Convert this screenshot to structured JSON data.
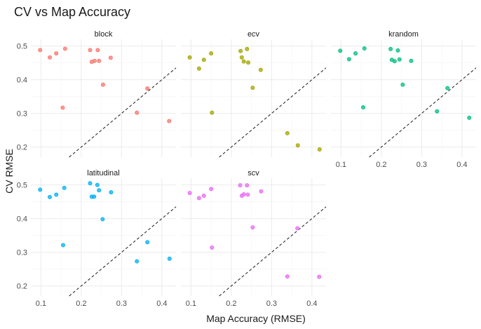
{
  "chart_data": {
    "type": "scatter",
    "title": "CV vs Map Accuracy",
    "xlabel": "Map Accuracy (RMSE)",
    "ylabel": "CV RMSE",
    "xlim": [
      0.075,
      0.435
    ],
    "ylim": [
      0.17,
      0.52
    ],
    "x_ticks": [
      0.1,
      0.2,
      0.3,
      0.4
    ],
    "x_tick_labels": [
      "0.1",
      "0.2",
      "0.3",
      "0.4"
    ],
    "y_ticks": [
      0.2,
      0.3,
      0.4,
      0.5
    ],
    "y_tick_labels": [
      "0.2",
      "0.3",
      "0.4",
      "0.5"
    ],
    "grid": true,
    "reference_line": "y = x",
    "panels": [
      {
        "name": "block",
        "color": "#F8766D",
        "points": [
          {
            "x": 0.098,
            "y": 0.488
          },
          {
            "x": 0.122,
            "y": 0.466
          },
          {
            "x": 0.138,
            "y": 0.478
          },
          {
            "x": 0.16,
            "y": 0.492
          },
          {
            "x": 0.154,
            "y": 0.317
          },
          {
            "x": 0.222,
            "y": 0.488
          },
          {
            "x": 0.226,
            "y": 0.453
          },
          {
            "x": 0.233,
            "y": 0.456
          },
          {
            "x": 0.241,
            "y": 0.488
          },
          {
            "x": 0.244,
            "y": 0.456
          },
          {
            "x": 0.254,
            "y": 0.385
          },
          {
            "x": 0.273,
            "y": 0.465
          },
          {
            "x": 0.338,
            "y": 0.302
          },
          {
            "x": 0.364,
            "y": 0.374
          },
          {
            "x": 0.418,
            "y": 0.277
          }
        ]
      },
      {
        "name": "ecv",
        "color": "#A3A500",
        "points": [
          {
            "x": 0.097,
            "y": 0.466
          },
          {
            "x": 0.12,
            "y": 0.433
          },
          {
            "x": 0.132,
            "y": 0.459
          },
          {
            "x": 0.15,
            "y": 0.478
          },
          {
            "x": 0.152,
            "y": 0.302
          },
          {
            "x": 0.223,
            "y": 0.485
          },
          {
            "x": 0.226,
            "y": 0.466
          },
          {
            "x": 0.231,
            "y": 0.454
          },
          {
            "x": 0.239,
            "y": 0.491
          },
          {
            "x": 0.242,
            "y": 0.451
          },
          {
            "x": 0.253,
            "y": 0.376
          },
          {
            "x": 0.273,
            "y": 0.429
          },
          {
            "x": 0.339,
            "y": 0.241
          },
          {
            "x": 0.365,
            "y": 0.205
          },
          {
            "x": 0.419,
            "y": 0.193
          }
        ]
      },
      {
        "name": "krandom",
        "color": "#00BF7D",
        "points": [
          {
            "x": 0.098,
            "y": 0.486
          },
          {
            "x": 0.12,
            "y": 0.461
          },
          {
            "x": 0.136,
            "y": 0.478
          },
          {
            "x": 0.158,
            "y": 0.493
          },
          {
            "x": 0.155,
            "y": 0.318
          },
          {
            "x": 0.223,
            "y": 0.491
          },
          {
            "x": 0.226,
            "y": 0.459
          },
          {
            "x": 0.233,
            "y": 0.455
          },
          {
            "x": 0.241,
            "y": 0.487
          },
          {
            "x": 0.245,
            "y": 0.46
          },
          {
            "x": 0.253,
            "y": 0.385
          },
          {
            "x": 0.274,
            "y": 0.456
          },
          {
            "x": 0.338,
            "y": 0.306
          },
          {
            "x": 0.364,
            "y": 0.375
          },
          {
            "x": 0.418,
            "y": 0.287
          }
        ]
      },
      {
        "name": "latitudinal",
        "color": "#00B0F6",
        "points": [
          {
            "x": 0.098,
            "y": 0.486
          },
          {
            "x": 0.122,
            "y": 0.464
          },
          {
            "x": 0.138,
            "y": 0.471
          },
          {
            "x": 0.158,
            "y": 0.491
          },
          {
            "x": 0.155,
            "y": 0.321
          },
          {
            "x": 0.222,
            "y": 0.505
          },
          {
            "x": 0.226,
            "y": 0.465
          },
          {
            "x": 0.232,
            "y": 0.465
          },
          {
            "x": 0.24,
            "y": 0.5
          },
          {
            "x": 0.244,
            "y": 0.484
          },
          {
            "x": 0.253,
            "y": 0.398
          },
          {
            "x": 0.274,
            "y": 0.478
          },
          {
            "x": 0.338,
            "y": 0.273
          },
          {
            "x": 0.364,
            "y": 0.33
          },
          {
            "x": 0.419,
            "y": 0.281
          }
        ]
      },
      {
        "name": "scv",
        "color": "#E76BF3",
        "points": [
          {
            "x": 0.097,
            "y": 0.476
          },
          {
            "x": 0.12,
            "y": 0.461
          },
          {
            "x": 0.132,
            "y": 0.468
          },
          {
            "x": 0.15,
            "y": 0.488
          },
          {
            "x": 0.152,
            "y": 0.314
          },
          {
            "x": 0.222,
            "y": 0.499
          },
          {
            "x": 0.226,
            "y": 0.468
          },
          {
            "x": 0.231,
            "y": 0.472
          },
          {
            "x": 0.239,
            "y": 0.499
          },
          {
            "x": 0.241,
            "y": 0.471
          },
          {
            "x": 0.253,
            "y": 0.374
          },
          {
            "x": 0.274,
            "y": 0.481
          },
          {
            "x": 0.339,
            "y": 0.228
          },
          {
            "x": 0.364,
            "y": 0.371
          },
          {
            "x": 0.418,
            "y": 0.227
          }
        ]
      }
    ]
  }
}
